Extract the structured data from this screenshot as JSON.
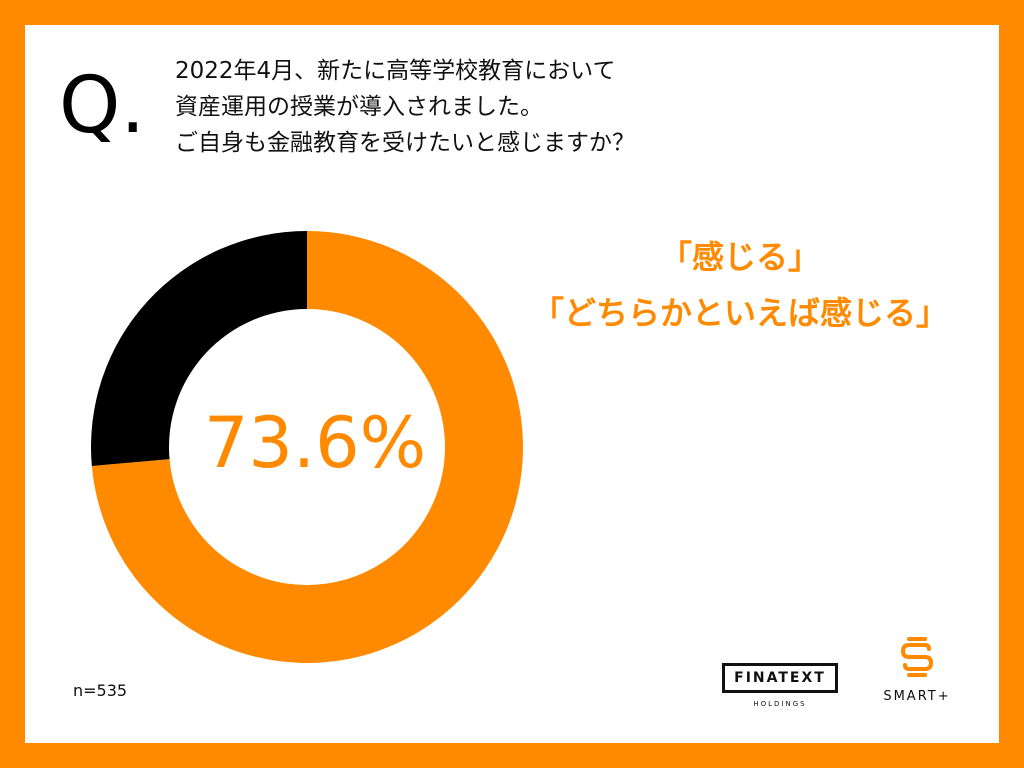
{
  "question": {
    "mark": "Q.",
    "lines": [
      "2022年4月、新たに高等学校教育において",
      "資産運用の授業が導入されました。",
      "ご自身も金融教育を受けたいと感じますか？"
    ]
  },
  "headline": {
    "lines": [
      "「感じる」",
      "「どちらかといえば感じる」"
    ]
  },
  "sample_size": "n=535",
  "logos": {
    "finatext": {
      "name": "FINATEXT",
      "sub": "HOLDINGS"
    },
    "smart": {
      "name": "SMART+"
    }
  },
  "colors": {
    "accent": "#FF8A00",
    "dark": "#000000"
  },
  "chart_data": {
    "type": "pie",
    "variant": "donut",
    "center_label": "73.6%",
    "slices": [
      {
        "value": 73.6,
        "color": "#FF8A00"
      },
      {
        "value": 26.4,
        "color": "#000000"
      }
    ]
  }
}
